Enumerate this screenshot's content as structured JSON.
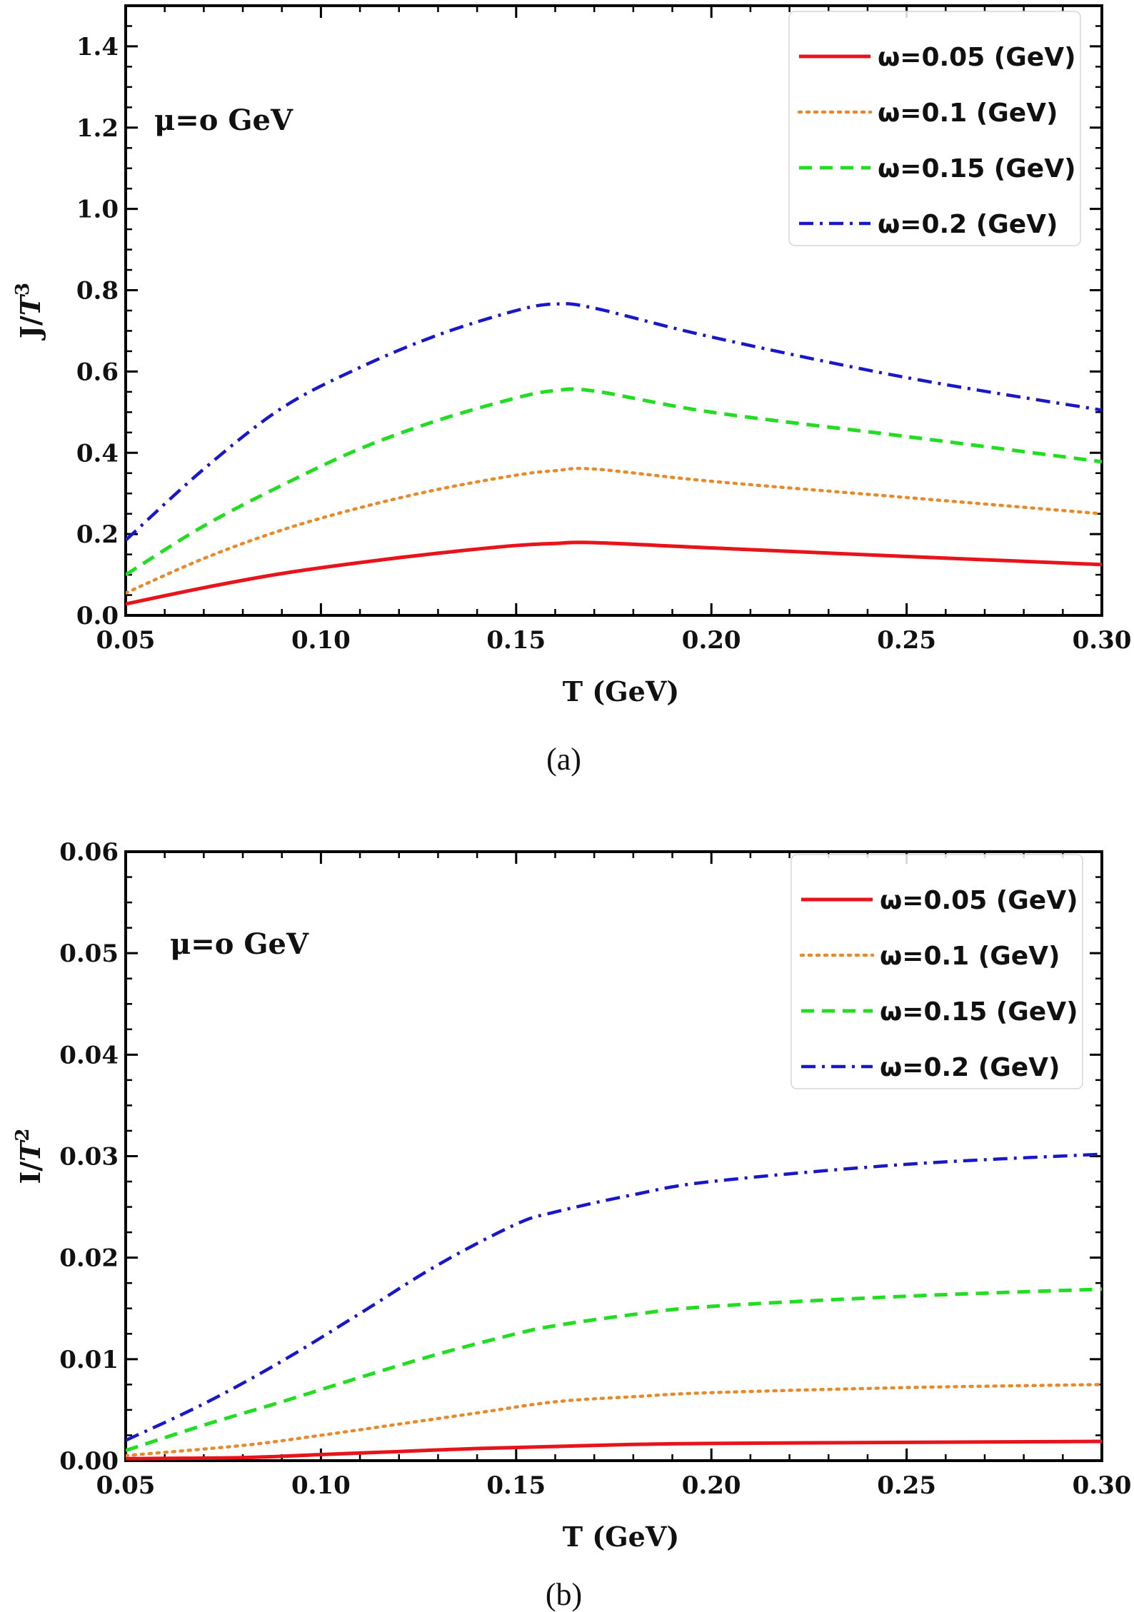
{
  "chart_data": [
    {
      "type": "line",
      "panel_caption": "(a)",
      "xlabel": "T (GeV)",
      "ylabel": "J/T3",
      "ylabel_base": "J/",
      "ylabel_var": "T",
      "ylabel_exp": "3",
      "annotation": "μ=o GeV",
      "xlim": [
        0.05,
        0.3
      ],
      "ylim": [
        0,
        1.5
      ],
      "x_ticks": [
        0.05,
        0.1,
        0.15,
        0.2,
        0.25,
        0.3
      ],
      "x_tick_labels": [
        "0.05",
        "0.10",
        "0.15",
        "0.20",
        "0.25",
        "0.30"
      ],
      "y_ticks": [
        0,
        0.2,
        0.4,
        0.6,
        0.8,
        1.0,
        1.2,
        1.4
      ],
      "y_tick_labels": [
        "0.0",
        "0.2",
        "0.4",
        "0.6",
        "0.8",
        "1.0",
        "1.2",
        "1.4"
      ],
      "legend_position": "top-right",
      "series": [
        {
          "name": "ω=0.05 (GeV)",
          "color": "#e8141b",
          "style": "solid",
          "x": [
            0.05,
            0.07,
            0.09,
            0.11,
            0.13,
            0.15,
            0.16,
            0.17,
            0.2,
            0.25,
            0.3
          ],
          "y": [
            0.028,
            0.068,
            0.103,
            0.13,
            0.153,
            0.172,
            0.177,
            0.179,
            0.166,
            0.145,
            0.125
          ]
        },
        {
          "name": "ω=0.1 (GeV)",
          "color": "#e8892a",
          "style": "dotted",
          "x": [
            0.05,
            0.07,
            0.09,
            0.11,
            0.13,
            0.15,
            0.16,
            0.17,
            0.2,
            0.25,
            0.3
          ],
          "y": [
            0.055,
            0.14,
            0.21,
            0.265,
            0.31,
            0.345,
            0.356,
            0.36,
            0.33,
            0.29,
            0.25
          ]
        },
        {
          "name": "ω=0.15 (GeV)",
          "color": "#22dd22",
          "style": "dashed",
          "x": [
            0.05,
            0.07,
            0.09,
            0.11,
            0.13,
            0.15,
            0.16,
            0.17,
            0.2,
            0.25,
            0.3
          ],
          "y": [
            0.1,
            0.22,
            0.32,
            0.41,
            0.48,
            0.535,
            0.553,
            0.552,
            0.5,
            0.44,
            0.378
          ]
        },
        {
          "name": "ω=0.2 (GeV)",
          "color": "#1818c8",
          "style": "dashdot",
          "x": [
            0.05,
            0.07,
            0.09,
            0.11,
            0.13,
            0.15,
            0.16,
            0.17,
            0.2,
            0.25,
            0.3
          ],
          "y": [
            0.185,
            0.36,
            0.51,
            0.61,
            0.69,
            0.75,
            0.766,
            0.756,
            0.685,
            0.585,
            0.505
          ]
        }
      ]
    },
    {
      "type": "line",
      "panel_caption": "(b)",
      "xlabel": "T (GeV)",
      "ylabel": "I/T2",
      "ylabel_base": "I/",
      "ylabel_var": "T",
      "ylabel_exp": "2",
      "annotation": "μ=o GeV",
      "xlim": [
        0.05,
        0.3
      ],
      "ylim": [
        0,
        0.06
      ],
      "x_ticks": [
        0.05,
        0.1,
        0.15,
        0.2,
        0.25,
        0.3
      ],
      "x_tick_labels": [
        "0.05",
        "0.10",
        "0.15",
        "0.20",
        "0.25",
        "0.30"
      ],
      "y_ticks": [
        0,
        0.01,
        0.02,
        0.03,
        0.04,
        0.05,
        0.06
      ],
      "y_tick_labels": [
        "0.00",
        "0.01",
        "0.02",
        "0.03",
        "0.04",
        "0.05",
        "0.06"
      ],
      "legend_position": "top-right",
      "series": [
        {
          "name": "ω=0.05 (GeV)",
          "color": "#e8141b",
          "style": "solid",
          "x": [
            0.05,
            0.08,
            0.1,
            0.12,
            0.14,
            0.16,
            0.18,
            0.2,
            0.25,
            0.3
          ],
          "y": [
            0.0002,
            0.0003,
            0.0006,
            0.0009,
            0.0012,
            0.0014,
            0.0016,
            0.0017,
            0.0018,
            0.0019
          ]
        },
        {
          "name": "ω=0.1 (GeV)",
          "color": "#e8892a",
          "style": "dotted",
          "x": [
            0.05,
            0.08,
            0.1,
            0.12,
            0.14,
            0.16,
            0.18,
            0.2,
            0.25,
            0.3
          ],
          "y": [
            0.0005,
            0.0015,
            0.0025,
            0.0036,
            0.0047,
            0.0058,
            0.0063,
            0.0067,
            0.0072,
            0.0075
          ]
        },
        {
          "name": "ω=0.15 (GeV)",
          "color": "#22dd22",
          "style": "dashed",
          "x": [
            0.05,
            0.07,
            0.09,
            0.11,
            0.13,
            0.15,
            0.16,
            0.18,
            0.2,
            0.25,
            0.3
          ],
          "y": [
            0.001,
            0.0035,
            0.0058,
            0.0082,
            0.0105,
            0.0125,
            0.0133,
            0.0144,
            0.0152,
            0.0162,
            0.0169
          ]
        },
        {
          "name": "ω=0.2 (GeV)",
          "color": "#1818c8",
          "style": "dashdot",
          "x": [
            0.05,
            0.07,
            0.09,
            0.11,
            0.13,
            0.15,
            0.16,
            0.18,
            0.2,
            0.25,
            0.3
          ],
          "y": [
            0.002,
            0.0056,
            0.0098,
            0.0145,
            0.0193,
            0.0233,
            0.0245,
            0.0262,
            0.0275,
            0.0292,
            0.0302
          ]
        }
      ]
    }
  ]
}
